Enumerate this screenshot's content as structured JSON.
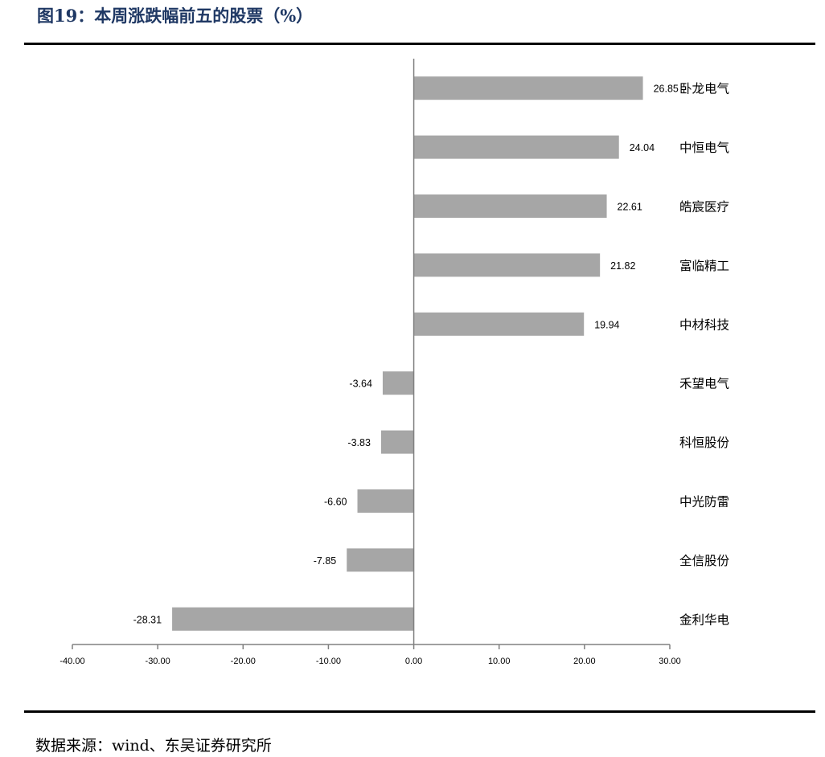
{
  "figure": {
    "title": "图19：本周涨跌幅前五的股票（%）",
    "source": "数据来源：wind、东吴证券研究所"
  },
  "colors": {
    "bar": "#a6a6a6",
    "axis": "#808080",
    "title": "#1f3864",
    "text": "#000000"
  },
  "chart_data": {
    "type": "bar",
    "orientation": "horizontal",
    "title": "",
    "xlabel": "",
    "ylabel": "",
    "categories": [
      "卧龙电气",
      "中恒电气",
      "皓宸医疗",
      "富临精工",
      "中材科技",
      "禾望电气",
      "科恒股份",
      "中光防雷",
      "全信股份",
      "金利华电"
    ],
    "values": [
      26.85,
      24.04,
      22.61,
      21.82,
      19.94,
      -3.64,
      -3.83,
      -6.6,
      -7.85,
      -28.31
    ],
    "data_labels": [
      "26.85",
      "24.04",
      "22.61",
      "21.82",
      "19.94",
      "-3.64",
      "-3.83",
      "-6.60",
      "-7.85",
      "-28.31"
    ],
    "xlim": [
      -40,
      30
    ],
    "xticks": [
      -40,
      -30,
      -20,
      -10,
      0,
      10,
      20,
      30
    ],
    "xtick_labels": [
      "-40.00",
      "-30.00",
      "-20.00",
      "-10.00",
      "0.00",
      "10.00",
      "20.00",
      "30.00"
    ],
    "grid": false,
    "legend": "none"
  }
}
